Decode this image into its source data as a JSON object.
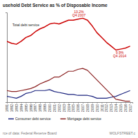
{
  "chart_data": {
    "type": "line",
    "title": "usehold Debt Service as % of Disposable Income",
    "x": [
      1991,
      1992,
      1993,
      1994,
      1995,
      1996,
      1997,
      1998,
      1999,
      2000,
      2001,
      2002,
      2003,
      2004,
      2005,
      2006,
      2007,
      2008,
      2009,
      2010,
      2011,
      2012,
      2013,
      2014,
      2015,
      2016,
      2017
    ],
    "xlim": [
      1991,
      2017.5
    ],
    "xticks": [
      1991,
      1992,
      1993,
      1994,
      1995,
      1996,
      1997,
      1998,
      1999,
      2000,
      2001,
      2002,
      2003,
      2004,
      2005,
      2006,
      2007,
      2008,
      2009,
      2010,
      2011,
      2012,
      2013,
      2014,
      2015,
      2016,
      2017
    ],
    "ylim": [
      4.5,
      13.8
    ],
    "yticks": [],
    "tick_labels": "x",
    "grid": false,
    "series": [
      {
        "color": "#cc0000",
        "values": [
          10.8,
          10.6,
          10.5,
          10.8,
          11.2,
          11.4,
          11.8,
          12.1,
          12.3,
          12.6,
          12.7,
          12.6,
          12.8,
          13.0,
          13.0,
          13.1,
          13.2,
          13.0,
          12.4,
          11.7,
          11.2,
          10.7,
          10.3,
          9.9,
          10.0,
          10.1,
          10.3
        ]
      },
      {
        "name": "Consumer debt service",
        "color": "#1a237e",
        "values": [
          5.1,
          5.0,
          4.9,
          5.1,
          5.4,
          5.5,
          5.7,
          5.7,
          5.7,
          5.8,
          5.6,
          5.5,
          5.4,
          5.3,
          5.3,
          5.2,
          5.2,
          5.2,
          5.1,
          4.9,
          4.9,
          4.9,
          5.0,
          5.1,
          5.3,
          5.5,
          5.7
        ]
      },
      {
        "name": "Mortgage debt service",
        "color": "#8b2020",
        "values": [
          5.7,
          5.6,
          5.6,
          5.7,
          5.8,
          5.9,
          6.1,
          6.4,
          6.6,
          6.8,
          7.1,
          7.1,
          7.4,
          7.7,
          7.7,
          7.9,
          8.0,
          7.8,
          7.3,
          6.8,
          6.3,
          5.8,
          5.3,
          4.8,
          4.7,
          4.6,
          4.6
        ]
      }
    ],
    "annotations": [
      {
        "text": "13.2%",
        "x": 2006.2,
        "y": 13.75,
        "color": "#cc0000"
      },
      {
        "text": "Q4 2007",
        "x": 2006.2,
        "y": 13.4,
        "color": "#cc0000"
      },
      {
        "text": "9.9%",
        "x": 2014.8,
        "y": 9.5,
        "color": "#cc0000"
      },
      {
        "text": "Q4 2014",
        "x": 2014.8,
        "y": 9.15,
        "color": "#cc0000"
      },
      {
        "text": "Total debt service",
        "x": 1995,
        "y": 12.4
      }
    ],
    "source": [
      "rce of data: Federal Reserve Board",
      "WOLFSTREET.c"
    ]
  }
}
